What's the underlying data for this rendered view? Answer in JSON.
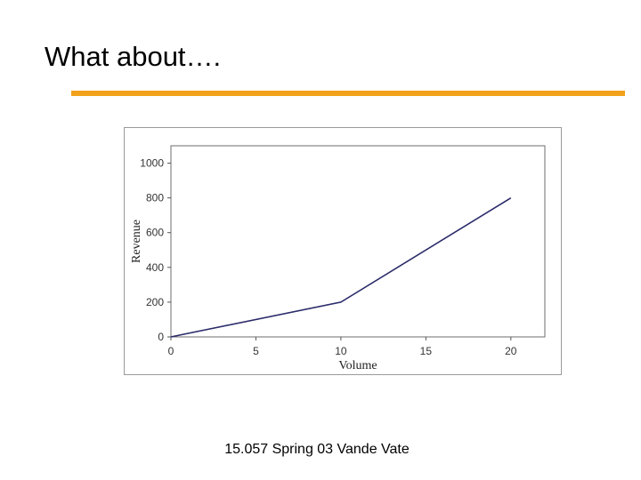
{
  "slide": {
    "title": "What about….",
    "footer": "15.057 Spring 03 Vande Vate",
    "accent_color": "#f2a11b"
  },
  "chart_data": {
    "type": "line",
    "title": "",
    "xlabel": "Volume",
    "ylabel": "Revenue",
    "xlim": [
      0,
      22
    ],
    "ylim": [
      0,
      1100
    ],
    "x_ticks": [
      0,
      5,
      10,
      15,
      20
    ],
    "y_ticks": [
      0,
      200,
      400,
      600,
      800,
      1000
    ],
    "grid": false,
    "line_color": "#2b2b6b",
    "series": [
      {
        "x": [
          0,
          10,
          20
        ],
        "y": [
          0,
          200,
          800
        ]
      }
    ]
  }
}
